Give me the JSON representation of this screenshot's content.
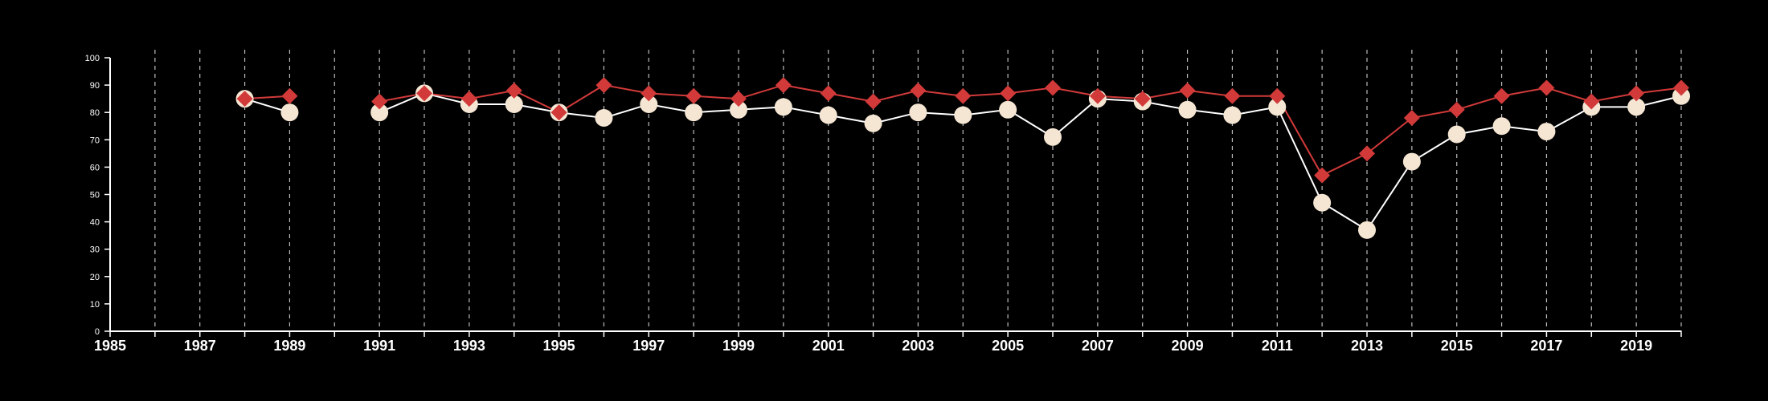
{
  "chart_data": {
    "type": "line",
    "title": "",
    "xlabel": "",
    "ylabel": "",
    "xlim": [
      1985,
      2020
    ],
    "ylim": [
      0,
      100
    ],
    "x_ticks": [
      1985,
      1987,
      1989,
      1991,
      1993,
      1995,
      1997,
      1999,
      2001,
      2003,
      2005,
      2007,
      2009,
      2011,
      2013,
      2015,
      2017,
      2019
    ],
    "y_ticks": [
      0,
      10,
      20,
      30,
      40,
      50,
      60,
      70,
      80,
      90,
      100
    ],
    "grid": "vertical dashed lines at each year",
    "legend": "none",
    "colors": {
      "background": "#000000",
      "axis": "#ffffff",
      "grid": "#bbbbbb"
    },
    "series": [
      {
        "color": "#d23a3a",
        "marker": "diamond",
        "x": [
          1988,
          1989,
          1991,
          1992,
          1993,
          1994,
          1995,
          1996,
          1997,
          1998,
          1999,
          2000,
          2001,
          2002,
          2003,
          2004,
          2005,
          2006,
          2007,
          2008,
          2009,
          2010,
          2011,
          2012,
          2013,
          2014,
          2015,
          2016,
          2017,
          2018,
          2019,
          2020
        ],
        "values": [
          85,
          86,
          84,
          87,
          85,
          88,
          80,
          90,
          87,
          86,
          85,
          90,
          87,
          84,
          88,
          86,
          87,
          89,
          86,
          85,
          88,
          86,
          86,
          57,
          65,
          78,
          81,
          86,
          89,
          84,
          87,
          89
        ]
      },
      {
        "color": "#f5e6d3",
        "line_color": "#ffffff",
        "marker": "circle",
        "x": [
          1988,
          1989,
          1991,
          1992,
          1993,
          1994,
          1995,
          1996,
          1997,
          1998,
          1999,
          2000,
          2001,
          2002,
          2003,
          2004,
          2005,
          2006,
          2007,
          2008,
          2009,
          2010,
          2011,
          2012,
          2013,
          2014,
          2015,
          2016,
          2017,
          2018,
          2019,
          2020
        ],
        "values": [
          85,
          80,
          80,
          87,
          83,
          83,
          80,
          78,
          83,
          80,
          81,
          82,
          79,
          76,
          80,
          79,
          81,
          71,
          85,
          84,
          81,
          79,
          82,
          47,
          37,
          62,
          72,
          75,
          73,
          82,
          82,
          86
        ]
      }
    ]
  }
}
